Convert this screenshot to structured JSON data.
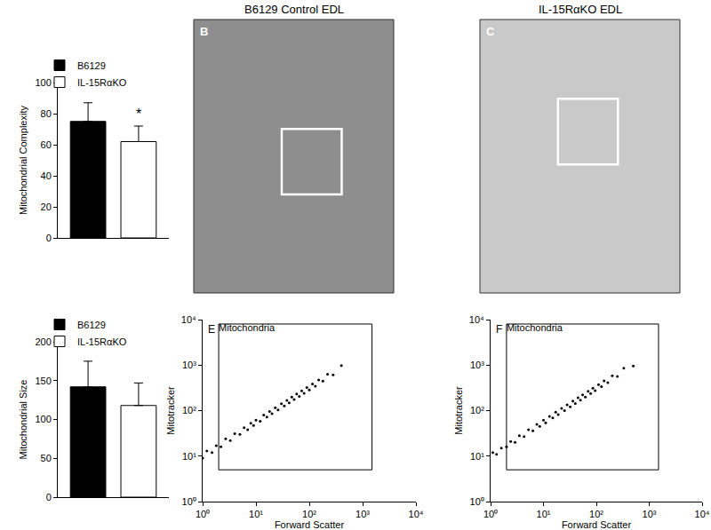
{
  "chart_data": [
    {
      "type": "bar",
      "ylabel": "Mitochondrial Complexity",
      "categories": [
        "B6129",
        "IL-15RαKO"
      ],
      "series": [
        {
          "name": "B6129",
          "color": "#000000",
          "values": [
            75,
            null
          ],
          "errors": [
            12,
            null
          ]
        },
        {
          "name": "IL-15RαKO",
          "color": "#ffffff",
          "values": [
            null,
            62
          ],
          "errors": [
            null,
            10
          ]
        }
      ],
      "ylim": [
        0,
        100
      ],
      "yticks": [
        0,
        20,
        40,
        60,
        80,
        100
      ],
      "annotations": [
        {
          "text": "*",
          "x": "IL-15RαKO",
          "y": 74
        }
      ],
      "legend": "top left",
      "tick_labels": "y",
      "grid": false
    },
    {
      "type": "image",
      "title": "B6129 Control EDL",
      "panel": "B",
      "color": "#8e8e8e"
    },
    {
      "type": "image",
      "title": "IL-15RαKO EDL",
      "panel": "C",
      "color": "#c9c9c9"
    },
    {
      "type": "bar",
      "ylabel": "Mitochondrial Size",
      "categories": [
        "B6129",
        "IL-15RαKO"
      ],
      "series": [
        {
          "name": "B6129",
          "color": "#000000",
          "values": [
            142,
            null
          ],
          "errors": [
            33,
            null
          ]
        },
        {
          "name": "IL-15RαKO",
          "color": "#ffffff",
          "values": [
            null,
            118
          ],
          "errors": [
            null,
            29
          ]
        }
      ],
      "ylim": [
        0,
        200
      ],
      "yticks": [
        0,
        50,
        100,
        150,
        200
      ],
      "legend": "top left",
      "tick_labels": "y",
      "grid": false
    },
    {
      "type": "scatter",
      "panel": "E",
      "xlabel": "Forward Scatter",
      "ylabel": "Mitotracker",
      "log": true,
      "color": "#000000",
      "marker": "dot",
      "grid": false,
      "xlim": [
        1,
        10000
      ],
      "ylim": [
        1,
        10000
      ],
      "xticks": [
        {
          "value": 1,
          "label": "10⁰"
        },
        {
          "value": 10,
          "label": "10¹"
        },
        {
          "value": 100,
          "label": "10²"
        },
        {
          "value": 1000,
          "label": "10³"
        },
        {
          "value": 10000,
          "label": "10⁴"
        }
      ],
      "yticks": [
        {
          "value": 1,
          "label": "10⁰"
        },
        {
          "value": 10,
          "label": "10¹"
        },
        {
          "value": 100,
          "label": "10²"
        },
        {
          "value": 1000,
          "label": "10³"
        },
        {
          "value": 10000,
          "label": "10⁴"
        }
      ],
      "gate": {
        "label": "Mitochondria",
        "x": [
          2,
          1500
        ],
        "y": [
          5,
          8000
        ]
      },
      "x": [
        1,
        1.2,
        1.5,
        1.8,
        2.2,
        2.7,
        3.3,
        4,
        5,
        6,
        7,
        8,
        9,
        10,
        12,
        14,
        16,
        18,
        20,
        23,
        26,
        30,
        34,
        38,
        42,
        47,
        52,
        58,
        65,
        72,
        80,
        90,
        100,
        115,
        130,
        150,
        180,
        220,
        280,
        400
      ],
      "y": [
        9,
        13,
        12,
        17,
        16,
        24,
        22,
        31,
        30,
        42,
        38,
        53,
        47,
        62,
        58,
        80,
        72,
        96,
        85,
        116,
        103,
        141,
        127,
        168,
        148,
        198,
        175,
        231,
        206,
        272,
        240,
        321,
        284,
        386,
        345,
        472,
        443,
        628,
        613,
        983
      ]
    },
    {
      "type": "scatter",
      "panel": "F",
      "xlabel": "Forward Scatter",
      "ylabel": "Mitotracker",
      "log": true,
      "color": "#000000",
      "marker": "dot",
      "grid": false,
      "xlim": [
        1,
        10000
      ],
      "ylim": [
        1,
        10000
      ],
      "xticks": [
        {
          "value": 1,
          "label": "10⁰"
        },
        {
          "value": 10,
          "label": "10¹"
        },
        {
          "value": 100,
          "label": "10²"
        },
        {
          "value": 1000,
          "label": "10³"
        },
        {
          "value": 10000,
          "label": "10⁴"
        }
      ],
      "yticks": [
        {
          "value": 1,
          "label": "10⁰"
        },
        {
          "value": 10,
          "label": "10¹"
        },
        {
          "value": 100,
          "label": "10²"
        },
        {
          "value": 1000,
          "label": "10³"
        },
        {
          "value": 10000,
          "label": "10⁴"
        }
      ],
      "gate": {
        "label": "Mitochondria",
        "x": [
          2,
          1500
        ],
        "y": [
          5,
          8000
        ]
      },
      "x": [
        1.1,
        1.3,
        1.6,
        2,
        2.4,
        2.9,
        3.5,
        4.3,
        5.2,
        6.3,
        7.5,
        8.5,
        10,
        11,
        13,
        15,
        17,
        19,
        22,
        25,
        28,
        32,
        36,
        40,
        45,
        50,
        55,
        62,
        70,
        78,
        86,
        95,
        110,
        125,
        140,
        165,
        200,
        250,
        330,
        500
      ],
      "y": [
        12,
        11,
        15,
        16,
        21,
        20,
        28,
        27,
        38,
        36,
        50,
        45,
        62,
        54,
        75,
        69,
        92,
        82,
        112,
        100,
        134,
        121,
        162,
        143,
        191,
        169,
        222,
        199,
        266,
        237,
        311,
        275,
        374,
        336,
        448,
        414,
        585,
        566,
        856,
        951
      ]
    }
  ]
}
